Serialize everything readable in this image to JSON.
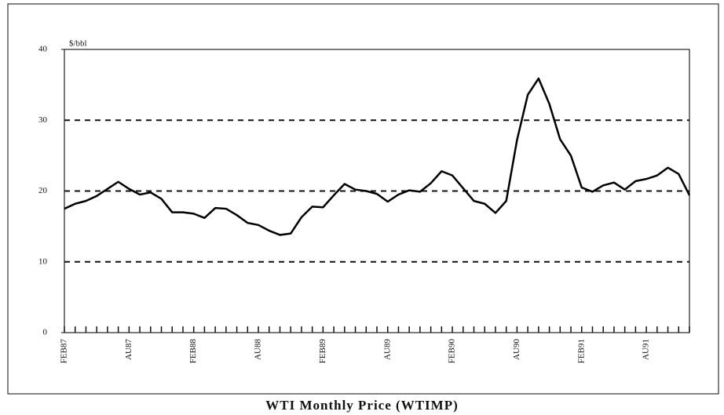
{
  "chart_data": {
    "type": "line",
    "title": "WTI Monthly Price (WTIMP)",
    "y_label": "$/bbl",
    "categories": [
      "FEB87",
      null,
      null,
      null,
      null,
      null,
      "AU87",
      null,
      null,
      null,
      null,
      null,
      "FEB88",
      null,
      null,
      null,
      null,
      null,
      "AU88",
      null,
      null,
      null,
      null,
      null,
      "FEB89",
      null,
      null,
      null,
      null,
      null,
      "AU89",
      null,
      null,
      null,
      null,
      null,
      "FEB90",
      null,
      null,
      null,
      null,
      null,
      "AU90",
      null,
      null,
      null,
      null,
      null,
      "FEB91",
      null,
      null,
      null,
      null,
      null,
      "AU91",
      null,
      null,
      null,
      null
    ],
    "series": [
      {
        "name": "WTIMP",
        "color": "#000000",
        "values": [
          17.5,
          18.2,
          18.6,
          19.3,
          20.3,
          21.3,
          20.3,
          19.5,
          19.8,
          18.9,
          17.0,
          17.0,
          16.8,
          16.2,
          17.6,
          17.5,
          16.6,
          15.5,
          15.2,
          14.4,
          13.8,
          14.0,
          16.3,
          17.8,
          17.7,
          19.4,
          21.0,
          20.2,
          20.0,
          19.6,
          18.5,
          19.5,
          20.1,
          19.9,
          21.1,
          22.8,
          22.2,
          20.4,
          18.6,
          18.2,
          16.9,
          18.6,
          27.2,
          33.6,
          35.9,
          32.3,
          27.3,
          25.0,
          20.5,
          19.9,
          20.8,
          21.2,
          20.2,
          21.4,
          21.7,
          22.2,
          23.3,
          22.4,
          19.4
        ]
      }
    ],
    "ylim": [
      0,
      40
    ],
    "yticks": [
      0,
      10,
      20,
      30,
      40
    ],
    "grid": true
  }
}
